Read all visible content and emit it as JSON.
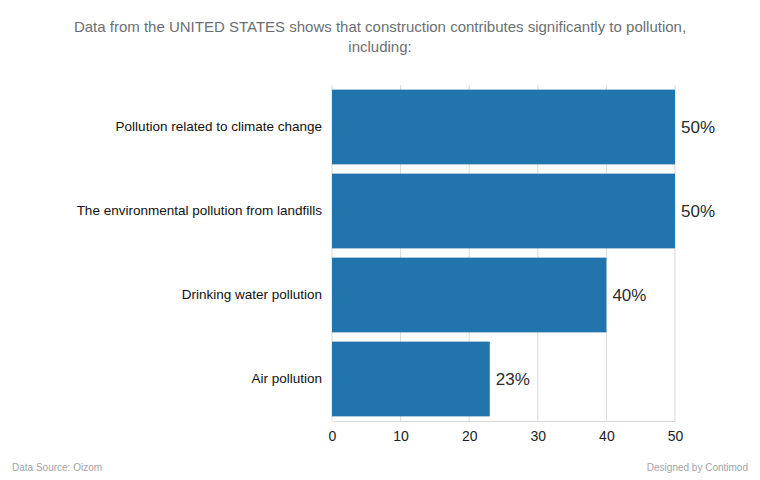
{
  "chart_data": {
    "type": "bar",
    "orientation": "horizontal",
    "title": "Data from the UNITED STATES shows that construction contributes significantly to pollution, including:",
    "categories": [
      "Pollution related to climate change",
      "The environmental pollution from landfills",
      "Drinking water pollution",
      "Air pollution"
    ],
    "values": [
      50,
      50,
      40,
      23
    ],
    "value_labels": [
      "50%",
      "50%",
      "40%",
      "23%"
    ],
    "data_labels": true,
    "color": "#2274ad",
    "xlim": [
      0,
      50
    ],
    "xticks": [
      0,
      10,
      20,
      30,
      40,
      50
    ],
    "grid": true,
    "annotations": [
      "Data Source: Oizom",
      "Designed by Contimod"
    ]
  }
}
